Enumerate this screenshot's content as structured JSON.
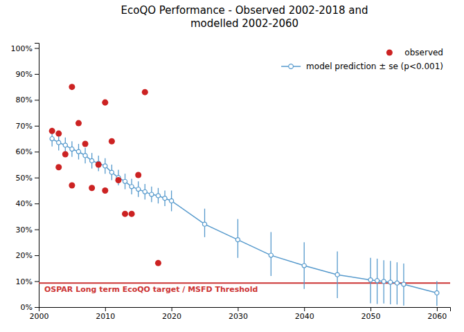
{
  "chart_data": {
    "type": "line",
    "title": "EcoQO Performance - Observed 2002-2018 and\nmodelled 2002-2060",
    "series": [
      {
        "name": "observed",
        "type": "scatter",
        "marker": "circle",
        "color": "#cc2222",
        "x": [
          2002,
          2003,
          2003,
          2004,
          2005,
          2005,
          2006,
          2007,
          2008,
          2009,
          2010,
          2010,
          2011,
          2012,
          2013,
          2014,
          2015,
          2016,
          2018
        ],
        "values": [
          0.68,
          0.54,
          0.67,
          0.59,
          0.47,
          0.85,
          0.71,
          0.63,
          0.46,
          0.55,
          0.45,
          0.79,
          0.64,
          0.49,
          0.36,
          0.36,
          0.51,
          0.83,
          0.17
        ]
      },
      {
        "name": "model prediction ± se (p<0.001)",
        "type": "line",
        "marker": "circle",
        "line_style": "solid",
        "color": "#5599cc",
        "x": [
          2002,
          2003,
          2004,
          2005,
          2006,
          2007,
          2008,
          2009,
          2010,
          2011,
          2012,
          2013,
          2014,
          2015,
          2016,
          2017,
          2018,
          2019,
          2020,
          2025,
          2030,
          2035,
          2040,
          2045,
          2050,
          2051,
          2052,
          2053,
          2054,
          2055,
          2060
        ],
        "values": [
          0.65,
          0.635,
          0.625,
          0.61,
          0.6,
          0.585,
          0.565,
          0.555,
          0.545,
          0.52,
          0.5,
          0.485,
          0.465,
          0.455,
          0.445,
          0.435,
          0.43,
          0.42,
          0.41,
          0.32,
          0.26,
          0.2,
          0.16,
          0.125,
          0.105,
          0.102,
          0.099,
          0.096,
          0.093,
          0.088,
          0.055
        ],
        "error_minus": [
          0.03,
          0.03,
          0.03,
          0.03,
          0.03,
          0.03,
          0.03,
          0.03,
          0.03,
          0.03,
          0.03,
          0.03,
          0.03,
          0.03,
          0.03,
          0.03,
          0.03,
          0.03,
          0.04,
          0.05,
          0.07,
          0.08,
          0.09,
          0.09,
          0.09,
          0.09,
          0.085,
          0.085,
          0.083,
          0.082,
          0.05
        ],
        "error_plus": [
          0.03,
          0.03,
          0.03,
          0.03,
          0.03,
          0.03,
          0.03,
          0.03,
          0.03,
          0.03,
          0.03,
          0.03,
          0.03,
          0.03,
          0.03,
          0.03,
          0.03,
          0.03,
          0.04,
          0.06,
          0.08,
          0.09,
          0.09,
          0.09,
          0.085,
          0.085,
          0.082,
          0.082,
          0.08,
          0.08,
          0.045
        ]
      }
    ],
    "threshold": {
      "value": 0.093,
      "label": "OSPAR Long term EcoQO target / MSFD Threshold",
      "color": "#cc3333"
    },
    "xlim": [
      2000,
      2062
    ],
    "ylim": [
      0.0,
      1.02
    ],
    "xticks": [
      2000,
      2010,
      2020,
      2030,
      2040,
      2050,
      2060
    ],
    "yticks": [
      {
        "value": 0.0,
        "label": "0%"
      },
      {
        "value": 0.1,
        "label": "10%"
      },
      {
        "value": 0.2,
        "label": "20%"
      },
      {
        "value": 0.3,
        "label": "30%"
      },
      {
        "value": 0.4,
        "label": "40%"
      },
      {
        "value": 0.5,
        "label": "50%"
      },
      {
        "value": 0.6,
        "label": "60%"
      },
      {
        "value": 0.7,
        "label": "70%"
      },
      {
        "value": 0.8,
        "label": "80%"
      },
      {
        "value": 0.9,
        "label": "90%"
      },
      {
        "value": 1.0,
        "label": "100%"
      }
    ],
    "grid": false,
    "legend": "upper right"
  }
}
